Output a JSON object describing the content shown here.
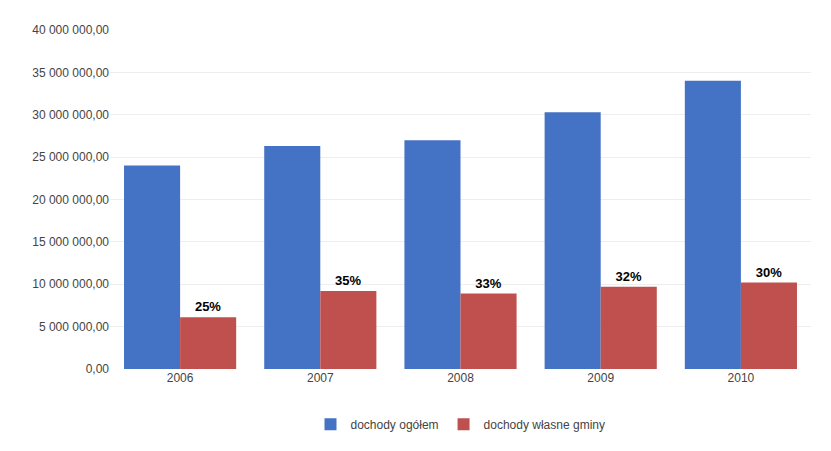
{
  "chart_data": {
    "type": "bar",
    "categories": [
      "2006",
      "2007",
      "2008",
      "2009",
      "2010"
    ],
    "series": [
      {
        "name": "dochody ogółem",
        "color": "#4472C4",
        "values": [
          24000000,
          26300000,
          27000000,
          30300000,
          34000000
        ]
      },
      {
        "name": "dochody własne gminy",
        "color": "#C0504D",
        "values": [
          6100000,
          9200000,
          8900000,
          9700000,
          10200000
        ]
      }
    ],
    "annotations": [
      {
        "x": "2006",
        "series": "dochody własne gminy",
        "text": "25%"
      },
      {
        "x": "2007",
        "series": "dochody własne gminy",
        "text": "35%"
      },
      {
        "x": "2008",
        "series": "dochody własne gminy",
        "text": "33%"
      },
      {
        "x": "2009",
        "series": "dochody własne gminy",
        "text": "32%"
      },
      {
        "x": "2010",
        "series": "dochody własne gminy",
        "text": "30%"
      }
    ],
    "ylim": [
      0,
      40000000
    ],
    "yticks": [
      {
        "value": 0,
        "label": "0,00"
      },
      {
        "value": 5000000,
        "label": "5 000 000,00"
      },
      {
        "value": 10000000,
        "label": "10 000 000,00"
      },
      {
        "value": 15000000,
        "label": "15 000 000,00"
      },
      {
        "value": 20000000,
        "label": "20 000 000,00"
      },
      {
        "value": 25000000,
        "label": "25 000 000,00"
      },
      {
        "value": 30000000,
        "label": "30 000 000,00"
      },
      {
        "value": 35000000,
        "label": "35 000 000,00"
      },
      {
        "value": 40000000,
        "label": "40 000 000,00"
      }
    ],
    "grid": true,
    "legend": "bottom"
  }
}
